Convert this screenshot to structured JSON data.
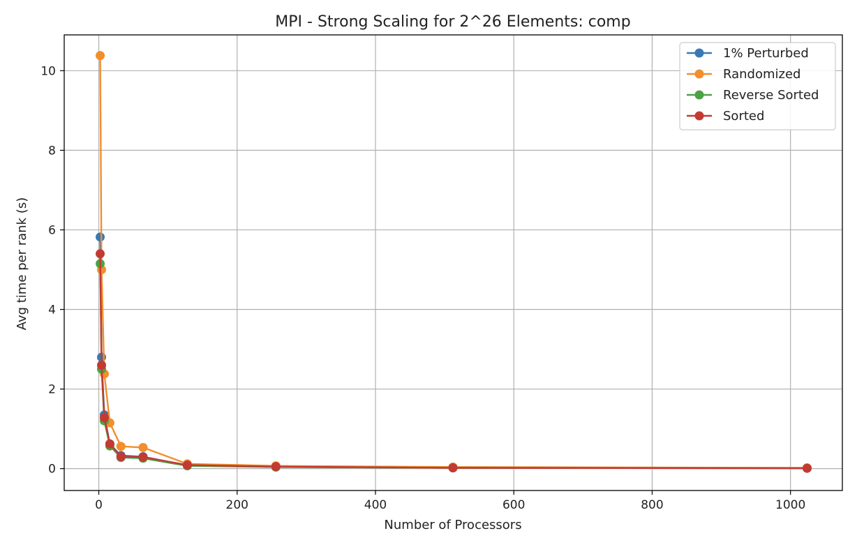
{
  "chart_data": {
    "type": "line",
    "title": "MPI - Strong Scaling for 2^26 Elements: comp",
    "xlabel": "Number of Processors",
    "ylabel": "Avg time per rank (s)",
    "xlim": [
      -50,
      1075
    ],
    "ylim": [
      -0.55,
      10.9
    ],
    "xticks": [
      0,
      200,
      400,
      600,
      800,
      1000
    ],
    "yticks": [
      0,
      2,
      4,
      6,
      8,
      10
    ],
    "grid": true,
    "legend_position": "top-right",
    "series": [
      {
        "name": "1% Perturbed",
        "color": "#3a78b5",
        "x": [
          2,
          4,
          8,
          16,
          32,
          64,
          128,
          256,
          512,
          1024
        ],
        "y": [
          5.82,
          2.8,
          1.35,
          0.62,
          0.33,
          0.3,
          0.08,
          0.04,
          0.02,
          0.01
        ]
      },
      {
        "name": "Randomized",
        "color": "#f28e2b",
        "x": [
          2,
          4,
          8,
          16,
          32,
          64,
          128,
          256,
          512,
          1024
        ],
        "y": [
          10.38,
          5.0,
          2.38,
          1.15,
          0.56,
          0.53,
          0.12,
          0.07,
          0.04,
          0.02
        ]
      },
      {
        "name": "Reverse Sorted",
        "color": "#4ea146",
        "x": [
          2,
          4,
          8,
          16,
          32,
          64,
          128,
          256,
          512,
          1024
        ],
        "y": [
          5.15,
          2.5,
          1.2,
          0.57,
          0.28,
          0.26,
          0.07,
          0.04,
          0.02,
          0.01
        ]
      },
      {
        "name": "Sorted",
        "color": "#c33a32",
        "x": [
          2,
          4,
          8,
          16,
          32,
          64,
          128,
          256,
          512,
          1024
        ],
        "y": [
          5.4,
          2.6,
          1.28,
          0.62,
          0.3,
          0.29,
          0.09,
          0.05,
          0.02,
          0.01
        ]
      }
    ]
  }
}
